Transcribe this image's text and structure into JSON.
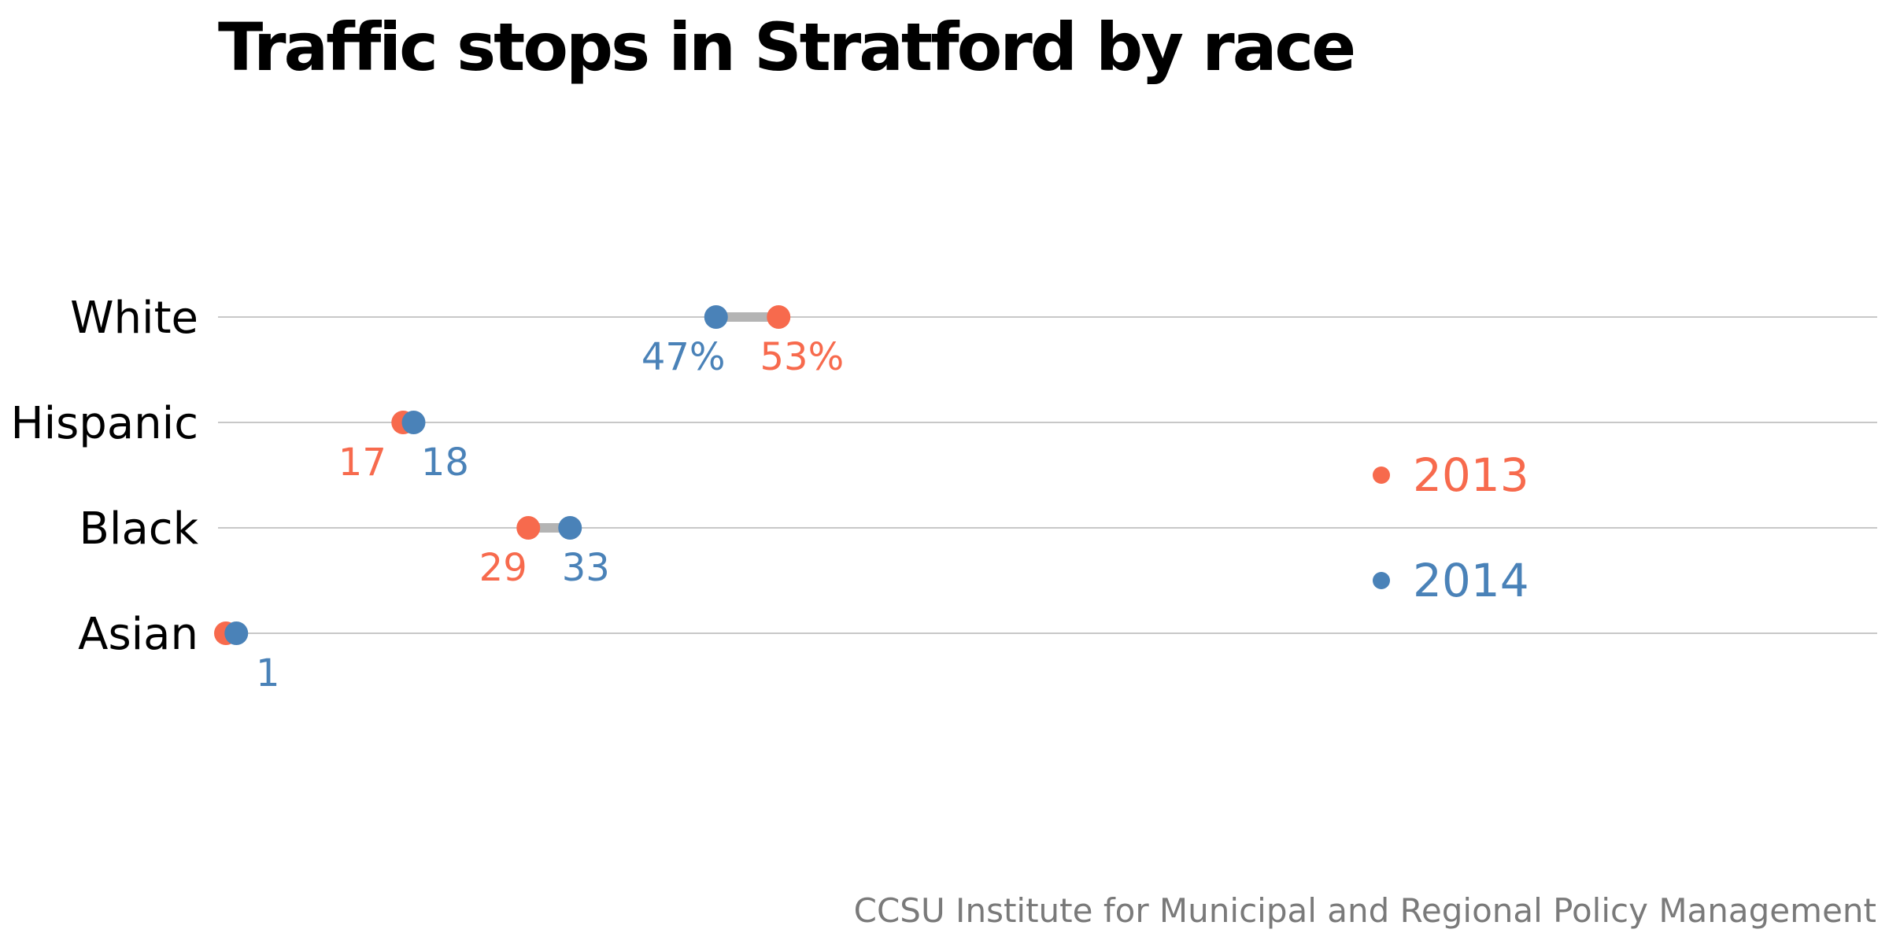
{
  "title": "Traffic stops in Stratford by race",
  "source": "CCSU Institute for Municipal and Regional Policy Management",
  "colors": {
    "2013": "#f76a4d",
    "2014": "#4a82b8",
    "connector": "#b4b4b4",
    "gridline": "#c8c8c8",
    "category_text": "#000000"
  },
  "chart_data": {
    "type": "dot_plot",
    "title": "Traffic stops in Stratford by race",
    "categories": [
      "White",
      "Hispanic",
      "Black",
      "Asian"
    ],
    "series": [
      {
        "name": "2013",
        "values": [
          53,
          17,
          29,
          0
        ],
        "labels": [
          "53%",
          "17",
          "29",
          ""
        ]
      },
      {
        "name": "2014",
        "values": [
          47,
          18,
          33,
          1
        ],
        "labels": [
          "47%",
          "18",
          "33",
          "1"
        ]
      }
    ],
    "unit": "%",
    "xlim": [
      0,
      100
    ],
    "grid": true,
    "legend": {
      "placement": "right",
      "entries": [
        "2013",
        "2014"
      ]
    }
  }
}
